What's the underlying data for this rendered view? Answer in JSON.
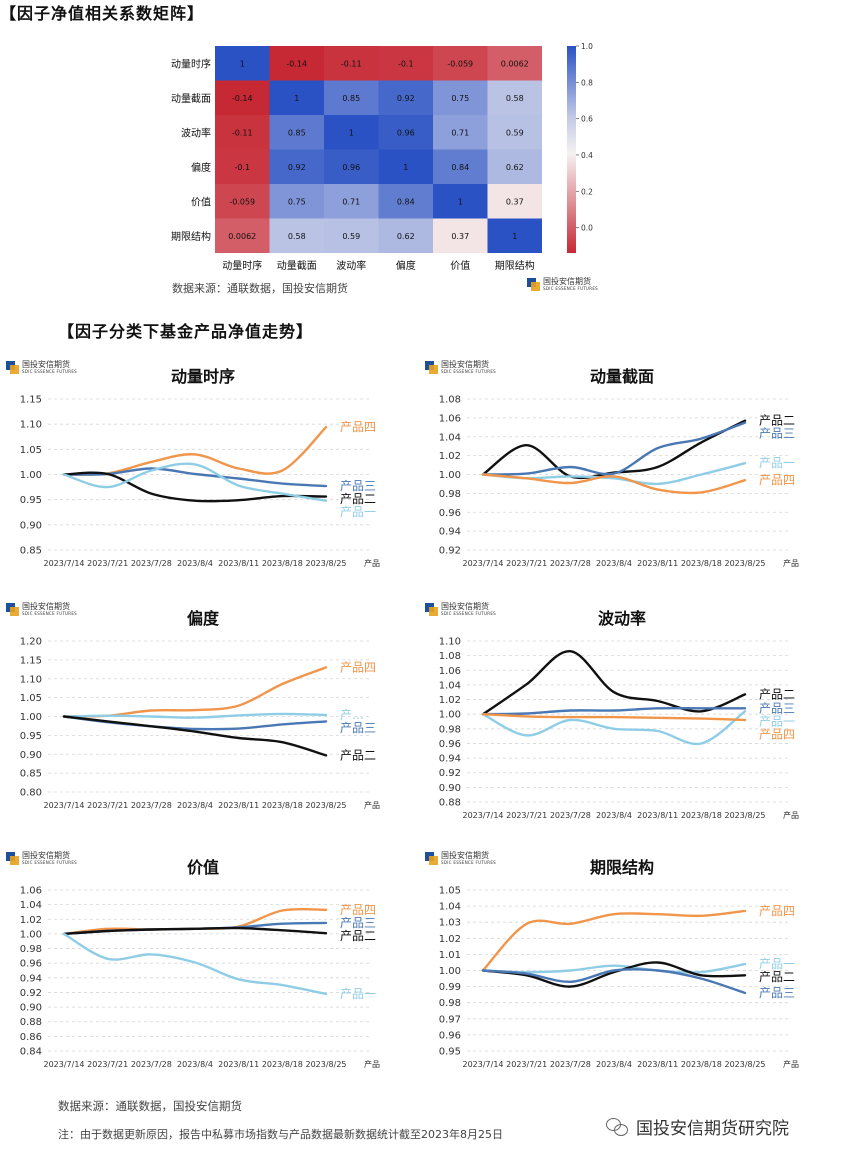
{
  "heatmap_section": {
    "title": "【因子净值相关系数矩阵】",
    "source": "数据来源：通联数据，国投安信期货"
  },
  "lines_section": {
    "title": "【因子分类下基金产品净值走势】"
  },
  "brand": {
    "cn": "国投安信期货",
    "en": "SDIC ESSENCE FUTURES"
  },
  "footer": {
    "source": "数据来源：通联数据，国投安信期货",
    "note": "注：由于数据更新原因，报告中私募市场指数与产品数据最新数据统计截至2023年8月25日",
    "wechat": "国投安信期货研究院"
  },
  "colors": {
    "product1": "#8fcde6",
    "product2": "#111111",
    "product3": "#4a78b4",
    "product4": "#f0954a"
  },
  "chart_data": [
    {
      "type": "heatmap",
      "labels": [
        "动量时序",
        "动量截面",
        "波动率",
        "偏度",
        "价值",
        "期限结构"
      ],
      "matrix": [
        [
          1,
          -0.14,
          -0.11,
          -0.1,
          -0.059,
          0.0062
        ],
        [
          -0.14,
          1,
          0.85,
          0.92,
          0.75,
          0.58
        ],
        [
          -0.11,
          0.85,
          1,
          0.96,
          0.71,
          0.59
        ],
        [
          -0.1,
          0.92,
          0.96,
          1,
          0.84,
          0.62
        ],
        [
          -0.059,
          0.75,
          0.71,
          0.84,
          1,
          0.37
        ],
        [
          0.0062,
          0.58,
          0.59,
          0.62,
          0.37,
          1
        ]
      ],
      "cell_labels": [
        [
          "1",
          "-0.14",
          "-0.11",
          "-0.1",
          "-0.059",
          "0.0062"
        ],
        [
          "-0.14",
          "1",
          "0.85",
          "0.92",
          "0.75",
          "0.58"
        ],
        [
          "-0.11",
          "0.85",
          "1",
          "0.96",
          "0.71",
          "0.59"
        ],
        [
          "-0.1",
          "0.92",
          "0.96",
          "1",
          "0.84",
          "0.62"
        ],
        [
          "-0.059",
          "0.75",
          "0.71",
          "0.84",
          "1",
          "0.37"
        ],
        [
          "0.0062",
          "0.58",
          "0.59",
          "0.62",
          "0.37",
          "1"
        ]
      ],
      "colorbar_ticks": [
        "1.0",
        "0.8",
        "0.6",
        "0.4",
        "0.2",
        "0.0"
      ],
      "colorbar_range": [
        -0.14,
        1.0
      ]
    },
    {
      "type": "line",
      "title": "动量时序",
      "categories": [
        "2023/7/14",
        "2023/7/21",
        "2023/7/28",
        "2023/8/4",
        "2023/8/11",
        "2023/8/18",
        "2023/8/25"
      ],
      "axis_extra_label": "产品",
      "y_ticks": [
        "1.15",
        "1.10",
        "1.05",
        "1.00",
        "0.95",
        "0.90",
        "0.85"
      ],
      "ylim": [
        0.85,
        1.15
      ],
      "series": [
        {
          "name": "产品四",
          "key": "product4",
          "values": [
            1.0,
            1.002,
            1.025,
            1.04,
            1.012,
            1.008,
            1.094
          ]
        },
        {
          "name": "产品三",
          "key": "product3",
          "values": [
            1.0,
            1.001,
            1.012,
            1.001,
            0.992,
            0.982,
            0.977
          ]
        },
        {
          "name": "产品二",
          "key": "product2",
          "values": [
            1.0,
            1.001,
            0.962,
            0.948,
            0.949,
            0.957,
            0.956
          ]
        },
        {
          "name": "产品一",
          "key": "product1",
          "values": [
            1.0,
            0.975,
            1.008,
            1.02,
            0.978,
            0.962,
            0.948
          ]
        }
      ]
    },
    {
      "type": "line",
      "title": "动量截面",
      "categories": [
        "2023/7/14",
        "2023/7/21",
        "2023/7/28",
        "2023/8/4",
        "2023/8/11",
        "2023/8/18",
        "2023/8/25"
      ],
      "axis_extra_label": "产品",
      "y_ticks": [
        "1.08",
        "1.06",
        "1.04",
        "1.02",
        "1.00",
        "0.98",
        "0.96",
        "0.94",
        "0.92"
      ],
      "ylim": [
        0.92,
        1.08
      ],
      "series": [
        {
          "name": "产品二",
          "key": "product2",
          "values": [
            1.0,
            1.031,
            0.998,
            1.002,
            1.008,
            1.034,
            1.057
          ]
        },
        {
          "name": "产品三",
          "key": "product3",
          "values": [
            1.0,
            1.001,
            1.008,
            1.001,
            1.028,
            1.038,
            1.055
          ]
        },
        {
          "name": "产品一",
          "key": "product1",
          "values": [
            1.0,
            0.996,
            0.998,
            0.996,
            0.99,
            1.0,
            1.012
          ]
        },
        {
          "name": "产品四",
          "key": "product4",
          "values": [
            1.0,
            0.996,
            0.991,
            0.998,
            0.984,
            0.981,
            0.994
          ]
        }
      ]
    },
    {
      "type": "line",
      "title": "偏度",
      "categories": [
        "2023/7/14",
        "2023/7/21",
        "2023/7/28",
        "2023/8/4",
        "2023/8/11",
        "2023/8/18",
        "2023/8/25"
      ],
      "axis_extra_label": "产品",
      "y_ticks": [
        "1.20",
        "1.15",
        "1.10",
        "1.05",
        "1.00",
        "0.95",
        "0.90",
        "0.85",
        "0.80"
      ],
      "ylim": [
        0.8,
        1.2
      ],
      "series": [
        {
          "name": "产品四",
          "key": "product4",
          "values": [
            1.0,
            1.002,
            1.016,
            1.017,
            1.029,
            1.086,
            1.13
          ]
        },
        {
          "name": "产…",
          "key": "product1",
          "values": [
            1.0,
            1.002,
            1.0,
            0.997,
            1.003,
            1.007,
            1.004
          ]
        },
        {
          "name": "产品三",
          "key": "product3",
          "values": [
            1.0,
            0.985,
            0.974,
            0.967,
            0.968,
            0.979,
            0.987
          ]
        },
        {
          "name": "产品二",
          "key": "product2",
          "values": [
            1.0,
            0.987,
            0.974,
            0.96,
            0.943,
            0.932,
            0.897
          ]
        }
      ]
    },
    {
      "type": "line",
      "title": "波动率",
      "categories": [
        "2023/7/14",
        "2023/7/21",
        "2023/7/28",
        "2023/8/4",
        "2023/8/11",
        "2023/8/18",
        "2023/8/25"
      ],
      "axis_extra_label": "产品",
      "y_ticks": [
        "1.10",
        "1.08",
        "1.06",
        "1.04",
        "1.02",
        "1.00",
        "0.98",
        "0.96",
        "0.94",
        "0.92",
        "0.90",
        "0.88"
      ],
      "ylim": [
        0.88,
        1.1
      ],
      "series": [
        {
          "name": "产品二",
          "key": "product2",
          "values": [
            1.0,
            1.041,
            1.086,
            1.03,
            1.018,
            1.004,
            1.027
          ]
        },
        {
          "name": "产品三",
          "key": "product3",
          "values": [
            1.0,
            1.001,
            1.005,
            1.005,
            1.008,
            1.008,
            1.008
          ]
        },
        {
          "name": "产品一",
          "key": "product1",
          "values": [
            1.0,
            0.971,
            0.992,
            0.98,
            0.977,
            0.96,
            1.004
          ]
        },
        {
          "name": "产品四",
          "key": "product4",
          "values": [
            1.0,
            0.997,
            0.996,
            0.996,
            0.995,
            0.994,
            0.992
          ]
        }
      ]
    },
    {
      "type": "line",
      "title": "价值",
      "categories": [
        "2023/7/14",
        "2023/7/21",
        "2023/7/28",
        "2023/8/4",
        "2023/8/11",
        "2023/8/18",
        "2023/8/25"
      ],
      "axis_extra_label": "产品",
      "y_ticks": [
        "1.06",
        "1.04",
        "1.02",
        "1.00",
        "0.98",
        "0.96",
        "0.94",
        "0.92",
        "0.90",
        "0.88",
        "0.86",
        "0.84"
      ],
      "ylim": [
        0.84,
        1.06
      ],
      "series": [
        {
          "name": "产品四",
          "key": "product4",
          "values": [
            1.0,
            1.007,
            1.006,
            1.007,
            1.01,
            1.032,
            1.033
          ]
        },
        {
          "name": "产品三",
          "key": "product3",
          "values": [
            1.0,
            1.004,
            1.006,
            1.007,
            1.009,
            1.014,
            1.015
          ]
        },
        {
          "name": "产品二",
          "key": "product2",
          "values": [
            1.0,
            1.004,
            1.006,
            1.007,
            1.008,
            1.005,
            1.001
          ]
        },
        {
          "name": "产品一",
          "key": "product1",
          "values": [
            1.0,
            0.966,
            0.972,
            0.961,
            0.938,
            0.93,
            0.918
          ]
        }
      ]
    },
    {
      "type": "line",
      "title": "期限结构",
      "categories": [
        "2023/7/14",
        "2023/7/21",
        "2023/7/28",
        "2023/8/4",
        "2023/8/11",
        "2023/8/18",
        "2023/8/25"
      ],
      "axis_extra_label": "产品",
      "y_ticks": [
        "1.05",
        "1.04",
        "1.03",
        "1.02",
        "1.01",
        "1.00",
        "0.99",
        "0.98",
        "0.97",
        "0.96",
        "0.95"
      ],
      "ylim": [
        0.95,
        1.05
      ],
      "series": [
        {
          "name": "产品四",
          "key": "product4",
          "values": [
            1.0,
            1.029,
            1.029,
            1.035,
            1.035,
            1.034,
            1.037
          ]
        },
        {
          "name": "产品一",
          "key": "product1",
          "values": [
            1.0,
            0.999,
            1.0,
            1.003,
            1.0,
            0.999,
            1.004
          ]
        },
        {
          "name": "产品二",
          "key": "product2",
          "values": [
            1.0,
            0.997,
            0.99,
            0.999,
            1.005,
            0.997,
            0.997
          ]
        },
        {
          "name": "产品三",
          "key": "product3",
          "values": [
            1.0,
            0.998,
            0.993,
            1.0,
            1.0,
            0.995,
            0.986
          ]
        }
      ]
    }
  ]
}
